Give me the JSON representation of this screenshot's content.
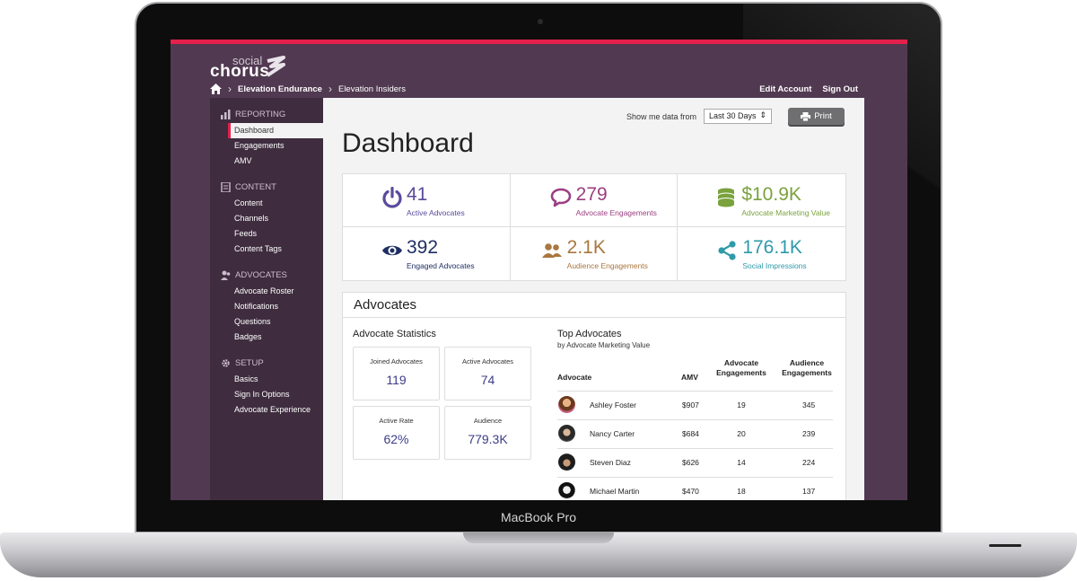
{
  "device": {
    "model": "MacBook Pro"
  },
  "brand": {
    "line1": "social",
    "line2": "chorus"
  },
  "breadcrumb": {
    "part1": "Elevation Endurance",
    "part2": "Elevation Insiders"
  },
  "top_links": {
    "edit": "Edit Account",
    "signout": "Sign Out"
  },
  "sidebar": {
    "reporting": {
      "label": "REPORTING",
      "items": [
        "Dashboard",
        "Engagements",
        "AMV"
      ]
    },
    "content": {
      "label": "CONTENT",
      "items": [
        "Content",
        "Channels",
        "Feeds",
        "Content Tags"
      ]
    },
    "advocates": {
      "label": "ADVOCATES",
      "items": [
        "Advocate Roster",
        "Notifications",
        "Questions",
        "Badges"
      ]
    },
    "setup": {
      "label": "SETUP",
      "items": [
        "Basics",
        "Sign In Options",
        "Advocate Experience"
      ]
    }
  },
  "filter": {
    "label": "Show me data from",
    "value": "Last 30 Days",
    "print": "Print"
  },
  "page_title": "Dashboard",
  "metrics": [
    {
      "value": "41",
      "label": "Active Advocates",
      "icon": "power-icon",
      "color": "#5b4a9c"
    },
    {
      "value": "279",
      "label": "Advocate Engagements",
      "icon": "speech-bubble-icon",
      "color": "#9b3f82"
    },
    {
      "value": "$10.9K",
      "label": "Advocate Marketing Value",
      "icon": "database-stack-icon",
      "color": "#7aa23d"
    },
    {
      "value": "392",
      "label": "Engaged Advocates",
      "icon": "eye-icon",
      "color": "#1f2f63"
    },
    {
      "value": "2.1K",
      "label": "Audience Engagements",
      "icon": "users-icon",
      "color": "#a9773f"
    },
    {
      "value": "176.1K",
      "label": "Social Impressions",
      "icon": "share-icon",
      "color": "#2f9aa9"
    }
  ],
  "advocates_panel": {
    "title": "Advocates",
    "stats_title": "Advocate Statistics",
    "stats": [
      {
        "label": "Joined Advocates",
        "value": "119"
      },
      {
        "label": "Active Advocates",
        "value": "74"
      },
      {
        "label": "Active Rate",
        "value": "62%"
      },
      {
        "label": "Audience",
        "value": "779.3K"
      }
    ],
    "top_title": "Top Advocates",
    "top_sub": "by Advocate Marketing Value",
    "columns": [
      "Advocate",
      "AMV",
      "Advocate Engagements",
      "Audience Engagements"
    ],
    "rows": [
      {
        "name": "Ashley Foster",
        "amv": "$907",
        "adv": "19",
        "aud": "345"
      },
      {
        "name": "Nancy Carter",
        "amv": "$684",
        "adv": "20",
        "aud": "239"
      },
      {
        "name": "Steven Diaz",
        "amv": "$626",
        "adv": "14",
        "aud": "224"
      },
      {
        "name": "Michael Martin",
        "amv": "$470",
        "adv": "18",
        "aud": "137"
      }
    ]
  }
}
